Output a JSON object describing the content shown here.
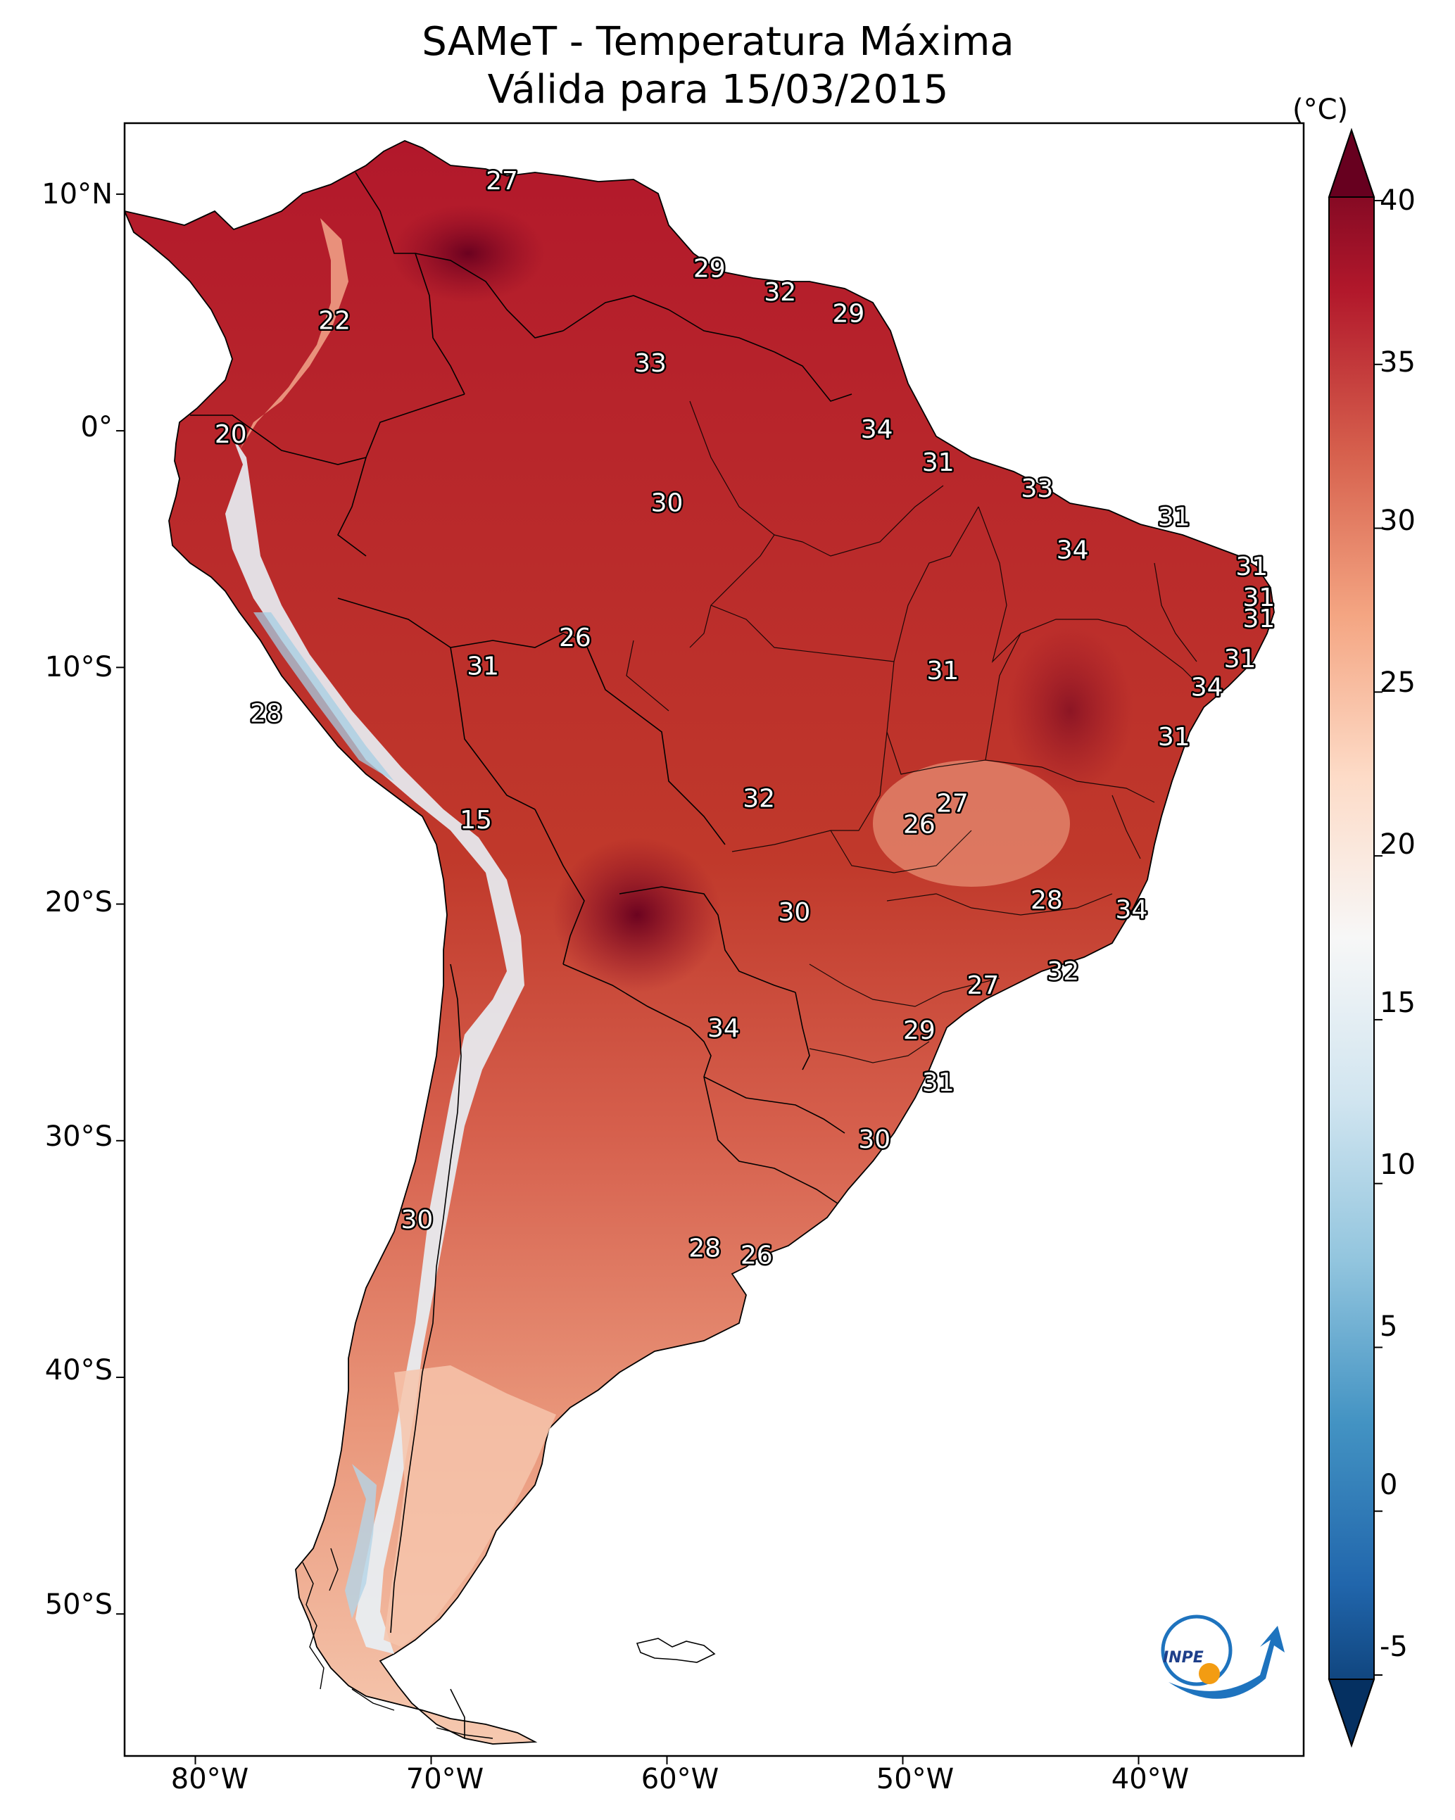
{
  "title_line1": "SAMeT - Temperatura Máxima",
  "title_line2": "Válida para 15/03/2015",
  "colorbar": {
    "unit": "(°C)",
    "ticks": [
      "40",
      "35",
      "30",
      "25",
      "20",
      "15",
      "10",
      "5",
      "0",
      "-5"
    ],
    "range": [
      -5,
      40
    ],
    "colors": [
      "#053061",
      "#2166ac",
      "#4393c3",
      "#92c5de",
      "#d1e5f0",
      "#f7f7f7",
      "#fddbc7",
      "#f4a582",
      "#d6604d",
      "#b2182b",
      "#67001f"
    ]
  },
  "lat_labels": [
    "10°N",
    "0°",
    "10°S",
    "20°S",
    "30°S",
    "40°S",
    "50°S"
  ],
  "lon_labels": [
    "80°W",
    "70°W",
    "60°W",
    "50°W",
    "40°W"
  ],
  "city_values": [
    {
      "label": "27",
      "lon": -67.0,
      "lat": 10.5
    },
    {
      "label": "29",
      "lon": -58.2,
      "lat": 6.8
    },
    {
      "label": "32",
      "lon": -55.2,
      "lat": 5.8
    },
    {
      "label": "29",
      "lon": -52.3,
      "lat": 4.9
    },
    {
      "label": "22",
      "lon": -74.1,
      "lat": 4.6
    },
    {
      "label": "33",
      "lon": -60.7,
      "lat": 2.8
    },
    {
      "label": "34",
      "lon": -51.1,
      "lat": 0.0
    },
    {
      "label": "20",
      "lon": -78.5,
      "lat": -0.2
    },
    {
      "label": "31",
      "lon": -48.5,
      "lat": -1.4
    },
    {
      "label": "33",
      "lon": -44.3,
      "lat": -2.5
    },
    {
      "label": "30",
      "lon": -60.0,
      "lat": -3.1
    },
    {
      "label": "31",
      "lon": -38.5,
      "lat": -3.7
    },
    {
      "label": "34",
      "lon": -42.8,
      "lat": -5.1
    },
    {
      "label": "31",
      "lon": -35.2,
      "lat": -5.8
    },
    {
      "label": "31",
      "lon": -34.9,
      "lat": -7.1
    },
    {
      "label": "31",
      "lon": -34.9,
      "lat": -8.0
    },
    {
      "label": "26",
      "lon": -63.9,
      "lat": -8.8
    },
    {
      "label": "31",
      "lon": -67.8,
      "lat": -10.0
    },
    {
      "label": "31",
      "lon": -35.7,
      "lat": -9.7
    },
    {
      "label": "31",
      "lon": -48.3,
      "lat": -10.2
    },
    {
      "label": "34",
      "lon": -37.1,
      "lat": -10.9
    },
    {
      "label": "28",
      "lon": -77.0,
      "lat": -12.0
    },
    {
      "label": "31",
      "lon": -38.5,
      "lat": -13.0
    },
    {
      "label": "32",
      "lon": -56.1,
      "lat": -15.6
    },
    {
      "label": "27",
      "lon": -47.9,
      "lat": -15.8
    },
    {
      "label": "26",
      "lon": -49.3,
      "lat": -16.7
    },
    {
      "label": "15",
      "lon": -68.1,
      "lat": -16.5
    },
    {
      "label": "28",
      "lon": -43.9,
      "lat": -19.9
    },
    {
      "label": "34",
      "lon": -40.3,
      "lat": -20.3
    },
    {
      "label": "30",
      "lon": -54.6,
      "lat": -20.4
    },
    {
      "label": "32",
      "lon": -43.2,
      "lat": -22.9
    },
    {
      "label": "27",
      "lon": -46.6,
      "lat": -23.5
    },
    {
      "label": "34",
      "lon": -57.6,
      "lat": -25.3
    },
    {
      "label": "29",
      "lon": -49.3,
      "lat": -25.4
    },
    {
      "label": "31",
      "lon": -48.5,
      "lat": -27.6
    },
    {
      "label": "30",
      "lon": -51.2,
      "lat": -30.0
    },
    {
      "label": "30",
      "lon": -70.6,
      "lat": -33.4
    },
    {
      "label": "28",
      "lon": -58.4,
      "lat": -34.6
    },
    {
      "label": "26",
      "lon": -56.2,
      "lat": -34.9
    }
  ]
}
